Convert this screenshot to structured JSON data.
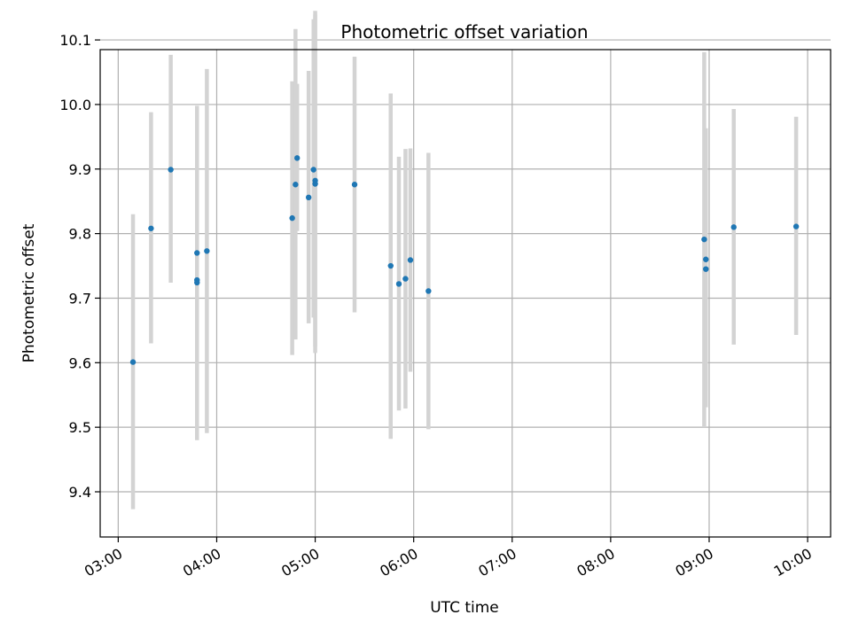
{
  "chart_data": {
    "type": "scatter",
    "title": "Photometric offset variation",
    "xlabel": "UTC time",
    "ylabel": "Photometric offset",
    "xlim": [
      "02:49",
      "10:14"
    ],
    "ylim": [
      9.33,
      10.085
    ],
    "x_ticks": [
      "03:00",
      "04:00",
      "05:00",
      "06:00",
      "07:00",
      "08:00",
      "09:00",
      "10:00"
    ],
    "y_ticks": [
      9.4,
      9.5,
      9.6,
      9.7,
      9.8,
      9.9,
      10.0,
      10.1
    ],
    "grid": true,
    "colors": {
      "points": "#1f77b4",
      "error_bars": "#d3d3d3",
      "grid": "#b0b0b0"
    },
    "points": [
      {
        "x": "03:09",
        "y": 9.601,
        "err_low": 9.373,
        "err_high": 9.83
      },
      {
        "x": "03:20",
        "y": 9.808,
        "err_low": 9.63,
        "err_high": 9.988
      },
      {
        "x": "03:32",
        "y": 9.899,
        "err_low": 9.724,
        "err_high": 10.077
      },
      {
        "x": "03:48",
        "y": 9.724,
        "err_low": 9.49,
        "err_high": 9.958
      },
      {
        "x": "03:48",
        "y": 9.728,
        "err_low": 9.48,
        "err_high": 9.975
      },
      {
        "x": "03:48",
        "y": 9.77,
        "err_low": 9.541,
        "err_high": 9.998
      },
      {
        "x": "03:54",
        "y": 9.773,
        "err_low": 9.491,
        "err_high": 10.055
      },
      {
        "x": "04:46",
        "y": 9.824,
        "err_low": 9.612,
        "err_high": 10.036
      },
      {
        "x": "04:48",
        "y": 9.876,
        "err_low": 9.636,
        "err_high": 10.117
      },
      {
        "x": "04:49",
        "y": 9.917,
        "err_low": 9.804,
        "err_high": 10.032
      },
      {
        "x": "04:56",
        "y": 9.856,
        "err_low": 9.661,
        "err_high": 10.052
      },
      {
        "x": "04:59",
        "y": 9.899,
        "err_low": 9.67,
        "err_high": 10.132
      },
      {
        "x": "05:00",
        "y": 9.877,
        "err_low": 9.615,
        "err_high": 10.139
      },
      {
        "x": "05:00",
        "y": 9.882,
        "err_low": 9.625,
        "err_high": 10.145
      },
      {
        "x": "05:24",
        "y": 9.876,
        "err_low": 9.678,
        "err_high": 10.074
      },
      {
        "x": "05:46",
        "y": 9.75,
        "err_low": 9.482,
        "err_high": 10.017
      },
      {
        "x": "05:51",
        "y": 9.722,
        "err_low": 9.526,
        "err_high": 9.919
      },
      {
        "x": "05:55",
        "y": 9.73,
        "err_low": 9.529,
        "err_high": 9.931
      },
      {
        "x": "05:58",
        "y": 9.759,
        "err_low": 9.586,
        "err_high": 9.932
      },
      {
        "x": "06:09",
        "y": 9.711,
        "err_low": 9.497,
        "err_high": 9.925
      },
      {
        "x": "08:57",
        "y": 9.791,
        "err_low": 9.5,
        "err_high": 10.081
      },
      {
        "x": "08:58",
        "y": 9.745,
        "err_low": 9.531,
        "err_high": 9.963
      },
      {
        "x": "08:58",
        "y": 9.76,
        "err_low": 9.556,
        "err_high": 9.963
      },
      {
        "x": "09:15",
        "y": 9.81,
        "err_low": 9.628,
        "err_high": 9.993
      },
      {
        "x": "09:53",
        "y": 9.811,
        "err_low": 9.643,
        "err_high": 9.981
      }
    ]
  }
}
